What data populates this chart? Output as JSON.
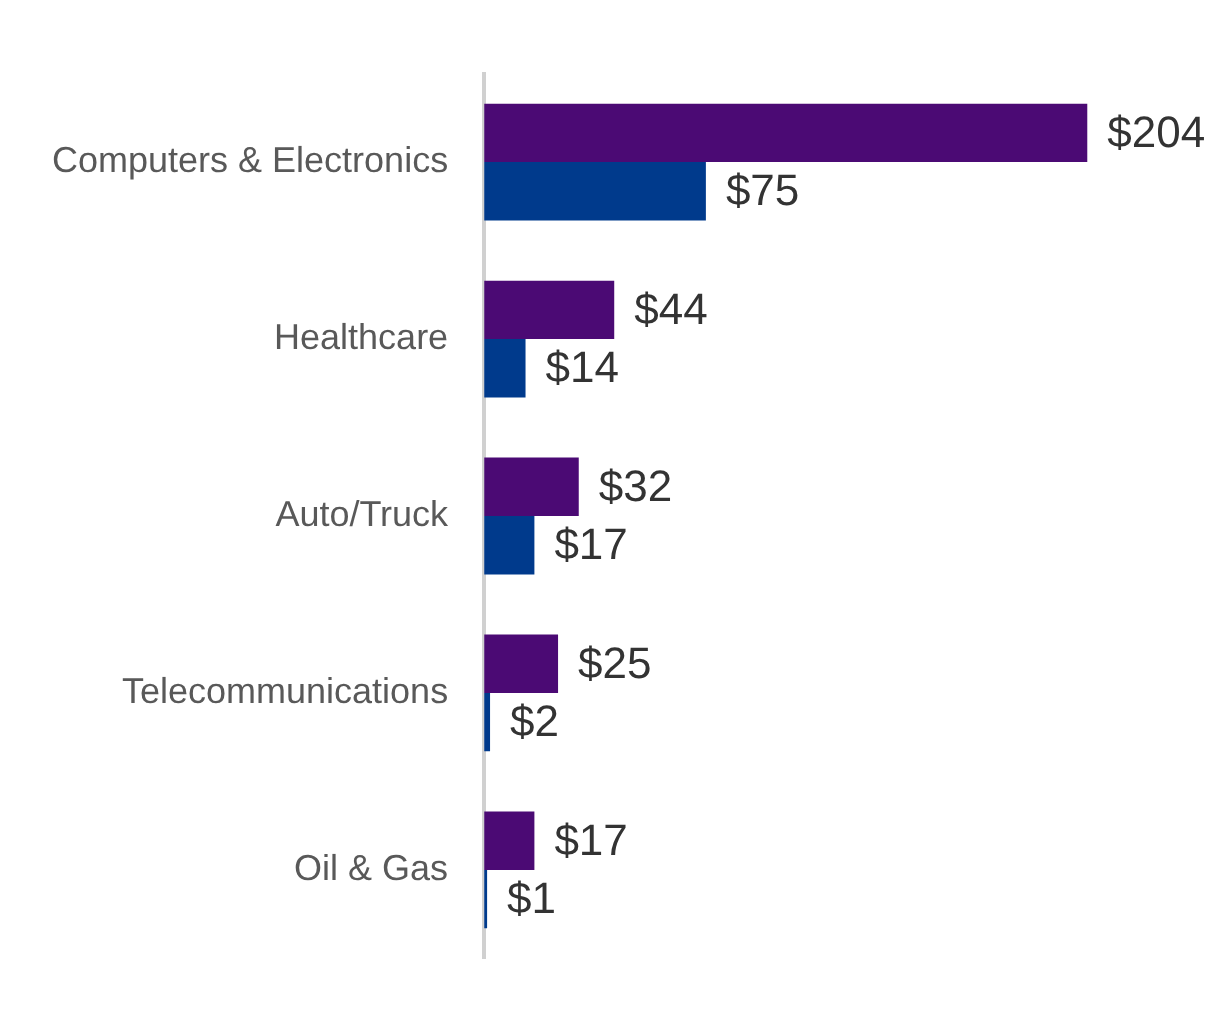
{
  "chart_data": {
    "type": "bar",
    "orientation": "horizontal",
    "categories": [
      "Computers & Electronics",
      "Healthcare",
      "Auto/Truck",
      "Telecommunications",
      "Oil & Gas"
    ],
    "series": [
      {
        "color": "#4b0a74",
        "values": [
          204,
          44,
          32,
          25,
          17
        ],
        "value_labels": [
          "$204",
          "$44",
          "$32",
          "$25",
          "$17"
        ]
      },
      {
        "color": "#003a8c",
        "values": [
          75,
          14,
          17,
          2,
          1
        ],
        "value_labels": [
          "$75",
          "$14",
          "$17",
          "$2",
          "$1"
        ]
      }
    ],
    "grid": false,
    "legend": false
  }
}
